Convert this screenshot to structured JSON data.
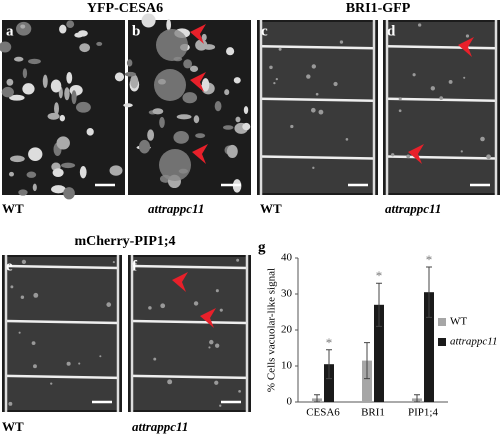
{
  "headers": [
    "YFP-CESA6",
    "BRI1-GFP",
    "mCherry-PIP1;4"
  ],
  "panels": [
    "a",
    "b",
    "c",
    "d",
    "e",
    "f"
  ],
  "genotypes": [
    "WT",
    "attrappc11",
    "WT",
    "attrappc11",
    "WT",
    "attrappc11"
  ],
  "chart_data": {
    "type": "bar",
    "panel_label": "g",
    "y_label": "% Cells vacuolar-like signal",
    "categories": [
      "CESA6",
      "BRI1",
      "PIP1;4"
    ],
    "series": [
      {
        "name": "WT",
        "color": "#a6a6a6",
        "values": [
          1,
          11.5,
          1
        ],
        "errors": [
          1,
          5,
          1
        ]
      },
      {
        "name": "attrappc11",
        "color": "#1a1a1a",
        "values": [
          10.5,
          27,
          30.5
        ],
        "errors": [
          4,
          6,
          7
        ]
      }
    ],
    "significance": [
      "*",
      "*",
      "*"
    ],
    "ylim": [
      0,
      40
    ],
    "yticks": [
      0,
      10,
      20,
      30,
      40
    ],
    "legend": "right"
  }
}
